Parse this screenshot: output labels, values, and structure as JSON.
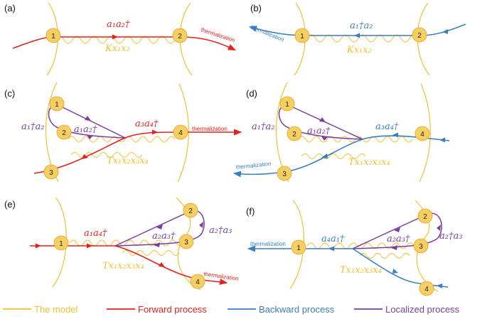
{
  "colors": {
    "model": "#f0c030",
    "forward": "#e8201c",
    "backward": "#3a7fc0",
    "localized": "#7a3ea0",
    "node_fill": "#f6cf63",
    "node_stroke": "#e8a020"
  },
  "panels": {
    "a": {
      "label": "(a)",
      "nodes": [
        "1",
        "2"
      ],
      "op": "a₁a₂†",
      "coupling": "Kx₁x₂",
      "therm": "thermalization"
    },
    "b": {
      "label": "(b)",
      "nodes": [
        "1",
        "2"
      ],
      "op": "a₁†a₂",
      "coupling": "Kx₁x₂",
      "therm": "thermalization"
    },
    "c": {
      "label": "(c)",
      "nodes": [
        "1",
        "2",
        "3",
        "4"
      ],
      "op_loc_outer": "a₁†a₂",
      "op_loc_inner": "a₁a₂†",
      "op_main": "a₃a₄†",
      "coupling": "Tx₁x₂x₃x₄",
      "therm": "thermalization"
    },
    "d": {
      "label": "(d)",
      "nodes": [
        "1",
        "2",
        "3",
        "4"
      ],
      "op_loc_outer": "a₁†a₂",
      "op_loc_inner": "a₁a₂†",
      "op_main": "a₃a₄†",
      "coupling": "Tx₁x₂x₃x₄",
      "therm": "thermalization"
    },
    "e": {
      "label": "(e)",
      "nodes": [
        "1",
        "2",
        "3",
        "4"
      ],
      "op_main": "a₁a₄†",
      "op_loc_inner": "a₂a₃†",
      "op_loc_outer": "a₂†a₃",
      "coupling": "Tx₁x₂x₃x₄",
      "therm": "thermalization"
    },
    "f": {
      "label": "(f)",
      "nodes": [
        "1",
        "2",
        "3",
        "4"
      ],
      "op_main": "a₄a₁†",
      "op_loc_inner": "a₂a₃†",
      "op_loc_outer": "a₂†a₃",
      "coupling": "Tx₁x₂x₃x₄",
      "therm": "thermalization"
    }
  },
  "legend": {
    "model": "The model",
    "forward": "Forward process",
    "backward": "Backward process",
    "localized": "Localized process"
  }
}
